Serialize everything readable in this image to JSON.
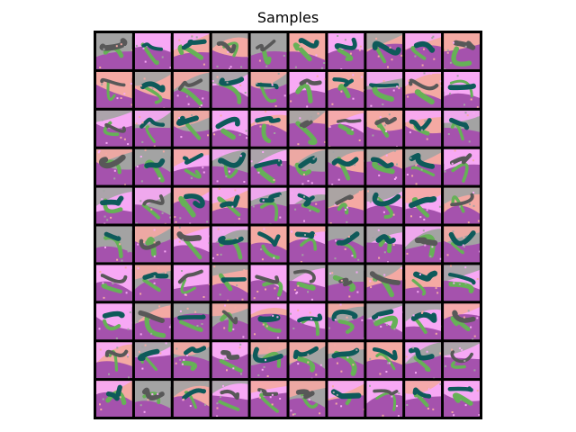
{
  "figure": {
    "title": "Samples"
  },
  "grid": {
    "rows": 10,
    "cols": 10,
    "palette": {
      "background_pink": "#f4a9a3",
      "background_gray": "#a3a3a3",
      "background_light_pink": "#f7a8f5",
      "region_purple": "#a552ad",
      "stroke_green": "#66b157",
      "stroke_teal": "#0e5a5a",
      "stroke_dark_gray": "#585858",
      "border": "#000000"
    }
  }
}
